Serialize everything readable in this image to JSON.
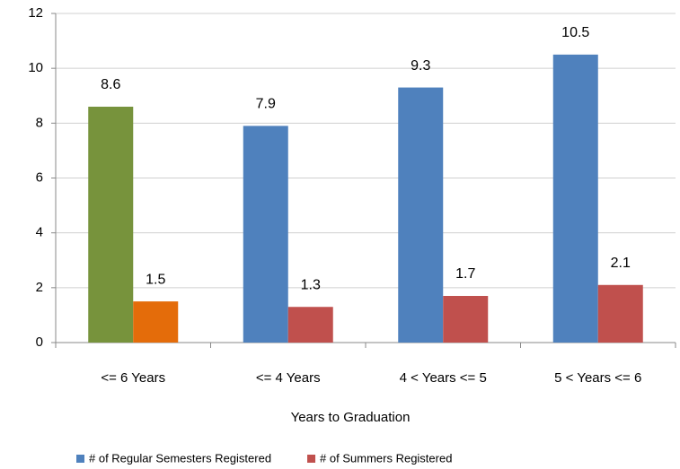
{
  "chart_data": {
    "type": "bar",
    "categories": [
      "<= 6 Years",
      "<= 4 Years",
      "4 < Years <= 5",
      "5 < Years <= 6"
    ],
    "x_label": "Years to Graduation",
    "series": [
      {
        "name": "# of Regular Semesters Registered",
        "color": "#4f81bd",
        "point_colors": [
          "#77933c",
          "#4f81bd",
          "#4f81bd",
          "#4f81bd"
        ],
        "values": [
          8.6,
          7.9,
          9.3,
          10.5
        ]
      },
      {
        "name": "# of Summers Registered",
        "color": "#c0504d",
        "point_colors": [
          "#e46c0a",
          "#c0504d",
          "#c0504d",
          "#c0504d"
        ],
        "values": [
          1.5,
          1.3,
          1.7,
          2.1
        ]
      }
    ],
    "ylim": [
      0,
      12
    ],
    "yticks": [
      0,
      2,
      4,
      6,
      8,
      10,
      12
    ],
    "grid": true,
    "legend": "bottom"
  }
}
